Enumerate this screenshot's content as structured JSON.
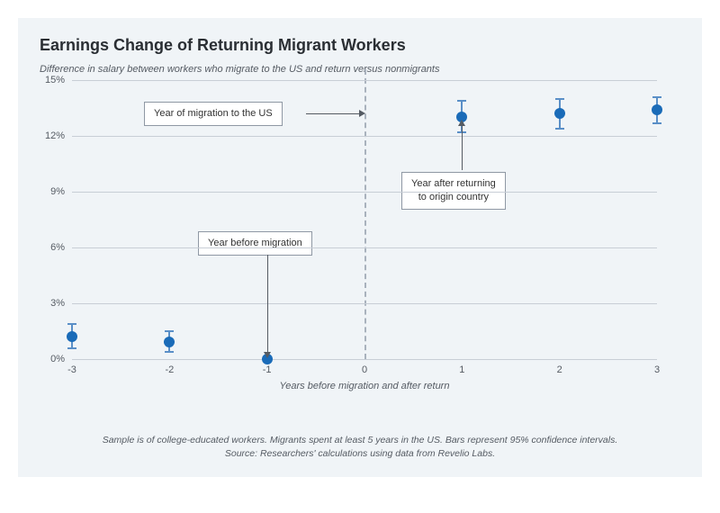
{
  "title": "Earnings Change of Returning Migrant Workers",
  "subtitle": "Difference in salary between workers who migrate to the US and return versus nonmigrants",
  "chart": {
    "type": "scatter",
    "xlim": [
      -3,
      3
    ],
    "ylim": [
      0,
      15
    ],
    "ytick_step": 3,
    "ytick_suffix": "%",
    "xticks": [
      -3,
      -2,
      -1,
      0,
      1,
      2,
      3
    ],
    "xaxis_title": "Years before migration and after return",
    "point_color": "#1a6bb8",
    "errorbar_color": "#5a8fc7",
    "grid_color": "#c8ced6",
    "vline_color": "#a9b2bd",
    "background_color": "#f0f4f7",
    "point_radius": 6,
    "title_fontsize": 18,
    "label_fontsize": 11,
    "data": [
      {
        "x": -3,
        "y": 1.2,
        "lo": 0.6,
        "hi": 1.9
      },
      {
        "x": -2,
        "y": 0.9,
        "lo": 0.4,
        "hi": 1.5
      },
      {
        "x": -1,
        "y": 0.0,
        "lo": 0.0,
        "hi": 0.0
      },
      {
        "x": 1,
        "y": 13.0,
        "lo": 12.2,
        "hi": 13.9
      },
      {
        "x": 2,
        "y": 13.2,
        "lo": 12.4,
        "hi": 14.0
      },
      {
        "x": 3,
        "y": 13.4,
        "lo": 12.7,
        "hi": 14.1
      }
    ],
    "annotations": {
      "migration": "Year of migration to the US",
      "before": "Year before migration",
      "after_l1": "Year after returning",
      "after_l2": "to origin country"
    }
  },
  "footnote_l1": "Sample is of college-educated workers. Migrants spent at least 5 years in the US. Bars represent 95% confidence intervals.",
  "footnote_l2": "Source: Researchers' calculations using data from Revelio Labs."
}
